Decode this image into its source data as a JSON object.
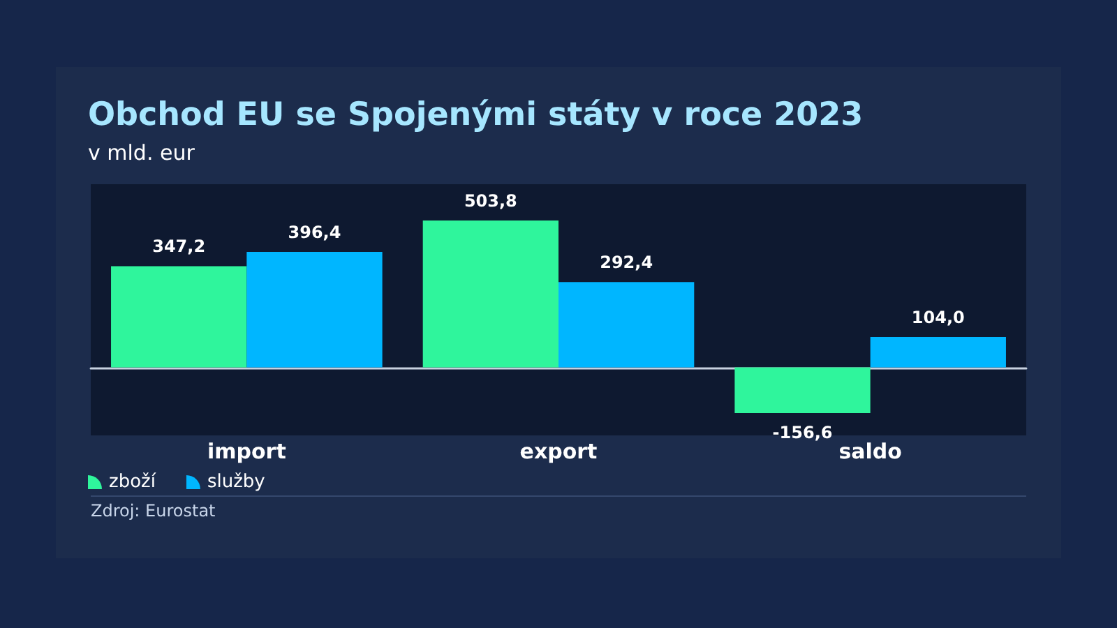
{
  "chart_data": {
    "type": "bar",
    "title": "Obchod EU se Spojenými státy v roce 2023",
    "subtitle": "v mld. eur",
    "categories": [
      "import",
      "export",
      "saldo"
    ],
    "series": [
      {
        "name": "zboží",
        "color": "#2ff59c",
        "values": [
          347.2,
          503.8,
          -156.6
        ],
        "value_labels": [
          "347,2",
          "503,8",
          "-156,6"
        ]
      },
      {
        "name": "služby",
        "color": "#00b6ff",
        "values": [
          396.4,
          292.4,
          104.0
        ],
        "value_labels": [
          "396,4",
          "292,4",
          "104,0"
        ]
      }
    ],
    "legend": "bottom left",
    "annotations": [
      "Zdroj: Eurostat"
    ]
  }
}
